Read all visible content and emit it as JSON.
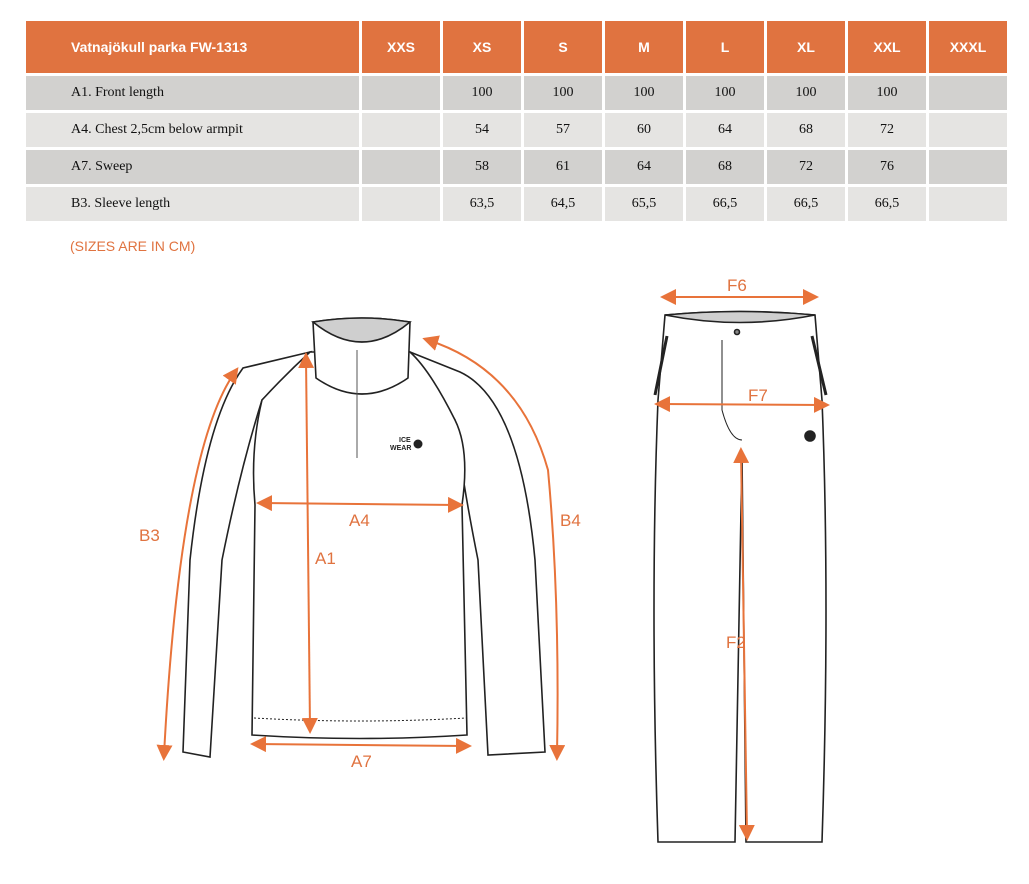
{
  "table": {
    "title": "Vatnajökull parka FW-1313",
    "sizes": [
      "XXS",
      "XS",
      "S",
      "M",
      "L",
      "XL",
      "XXL",
      "XXXL"
    ],
    "rows": [
      {
        "label": "A1. Front length",
        "values": [
          "",
          "100",
          "100",
          "100",
          "100",
          "100",
          "100",
          ""
        ]
      },
      {
        "label": "A4. Chest 2,5cm below armpit",
        "values": [
          "",
          "54",
          "57",
          "60",
          "64",
          "68",
          "72",
          ""
        ]
      },
      {
        "label": "A7. Sweep",
        "values": [
          "",
          "58",
          "61",
          "64",
          "68",
          "72",
          "76",
          ""
        ]
      },
      {
        "label": "B3. Sleeve length",
        "values": [
          "",
          "63,5",
          "64,5",
          "65,5",
          "66,5",
          "66,5",
          "66,5",
          ""
        ]
      }
    ]
  },
  "note": "(SIZES ARE IN CM)",
  "diagram": {
    "jacket_labels": {
      "b3": "B3",
      "a4": "A4",
      "a1": "A1",
      "b4": "B4",
      "a7": "A7"
    },
    "pants_labels": {
      "f6": "F6",
      "f7": "F7",
      "f2": "F2"
    },
    "logo": "ICE WEAR",
    "colors": {
      "accent": "#e07340",
      "arrow": "#e8733a"
    }
  }
}
